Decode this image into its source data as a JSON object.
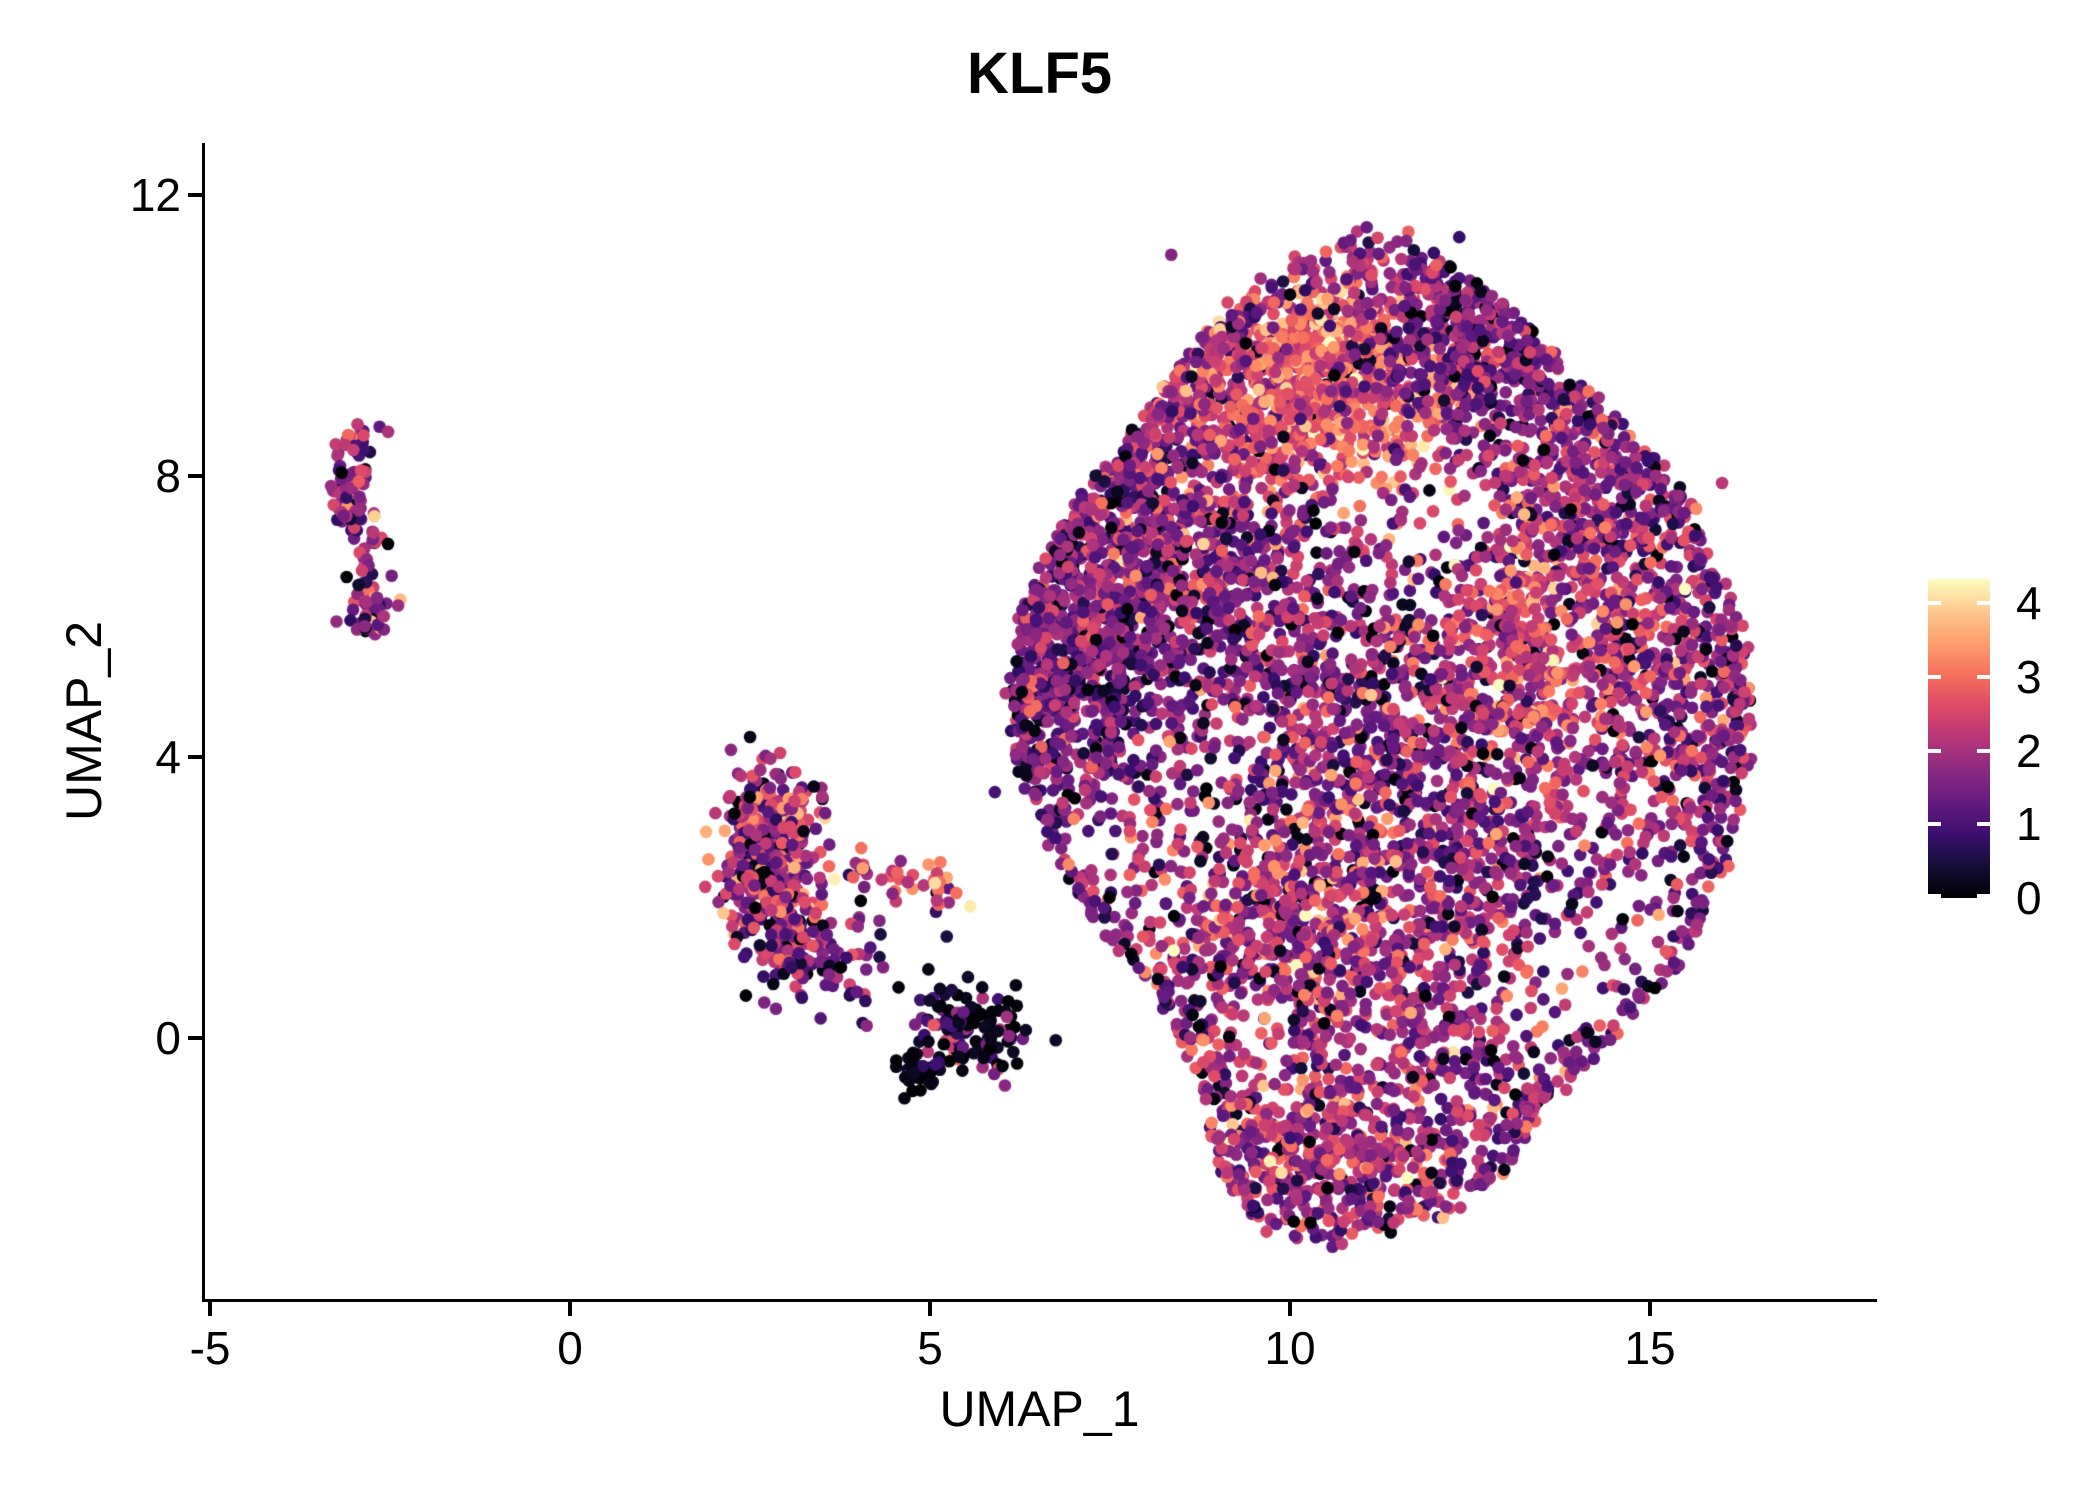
{
  "chart_data": {
    "type": "scatter",
    "title": "KLF5",
    "xlabel": "UMAP_1",
    "ylabel": "UMAP_2",
    "xlim": [
      -5.07,
      18.11
    ],
    "ylim": [
      -3.73,
      12.74
    ],
    "xticks": [
      -5,
      0,
      5,
      10,
      15
    ],
    "yticks": [
      0,
      4,
      8,
      12
    ],
    "grid": false,
    "legend_position": "right",
    "point_radius_px": 6.3,
    "seed": 1337,
    "colorbar": {
      "min": 0,
      "max": 4.33,
      "ticks": [
        0,
        1,
        2,
        3,
        4
      ],
      "stops": [
        "#000004",
        "#140e36",
        "#3b0f70",
        "#641a80",
        "#8c2981",
        "#b73779",
        "#de4968",
        "#f7705c",
        "#fe9f6d",
        "#fec98d",
        "#fcfdbf"
      ]
    },
    "polygons": {
      "big": [
        [
          6.0,
          5.0
        ],
        [
          6.3,
          3.4
        ],
        [
          7.05,
          1.7
        ],
        [
          8.15,
          0.5
        ],
        [
          8.7,
          -0.55
        ],
        [
          8.95,
          -1.9
        ],
        [
          9.55,
          -2.75
        ],
        [
          10.55,
          -3.0
        ],
        [
          11.9,
          -2.7
        ],
        [
          13.1,
          -2.0
        ],
        [
          13.5,
          -1.0
        ],
        [
          14.4,
          -0.3
        ],
        [
          15.45,
          0.9
        ],
        [
          16.1,
          2.3
        ],
        [
          16.45,
          3.8
        ],
        [
          16.4,
          5.6
        ],
        [
          15.6,
          7.7
        ],
        [
          14.25,
          9.2
        ],
        [
          13.0,
          10.45
        ],
        [
          11.4,
          11.7
        ],
        [
          10.3,
          11.35
        ],
        [
          9.15,
          10.5
        ],
        [
          8.0,
          9.0
        ],
        [
          7.0,
          7.6
        ],
        [
          6.3,
          6.3
        ]
      ]
    },
    "clusters": [
      {
        "name": "left-strip",
        "type": "path",
        "pts": [
          [
            -2.88,
            8.62
          ],
          [
            -3.0,
            8.25
          ],
          [
            -3.07,
            7.9
          ],
          [
            -3.0,
            7.55
          ],
          [
            -2.93,
            7.25
          ],
          [
            -2.82,
            6.98
          ]
        ],
        "jitter": 0.13,
        "n": 95,
        "vm": 1.75,
        "vs": 0.8,
        "black": 0.03
      },
      {
        "name": "left-gap-dots",
        "type": "gauss",
        "cx": -2.82,
        "cy": 6.7,
        "sx": 0.07,
        "sy": 0.12,
        "n": 7,
        "vm": 1.8,
        "vs": 0.6
      },
      {
        "name": "left-lower-blob",
        "type": "gauss",
        "cx": -2.77,
        "cy": 6.08,
        "sx": 0.17,
        "sy": 0.22,
        "n": 55,
        "vm": 1.95,
        "vs": 0.85,
        "black": 0.04
      },
      {
        "name": "mid-crescent-top",
        "type": "gauss",
        "cx": 2.78,
        "cy": 2.95,
        "sx": 0.3,
        "sy": 0.42,
        "n": 230,
        "vm": 1.85,
        "vs": 0.85,
        "black": 0.03
      },
      {
        "name": "mid-crescent-mid",
        "type": "gauss",
        "cx": 2.62,
        "cy": 2.15,
        "sx": 0.25,
        "sy": 0.33,
        "n": 150,
        "vm": 1.7,
        "vs": 0.85,
        "black": 0.03
      },
      {
        "name": "mid-crescent-low",
        "type": "gauss",
        "cx": 3.05,
        "cy": 1.3,
        "sx": 0.3,
        "sy": 0.33,
        "n": 130,
        "vm": 1.6,
        "vs": 0.85,
        "black": 0.04
      },
      {
        "name": "mid-sparse",
        "type": "gauss",
        "cx": 3.9,
        "cy": 1.15,
        "sx": 0.55,
        "sy": 0.45,
        "n": 50,
        "vm": 1.4,
        "vs": 0.8,
        "black": 0.04
      },
      {
        "name": "mid-chain",
        "type": "path",
        "pts": [
          [
            3.6,
            2.4
          ],
          [
            4.1,
            2.3
          ],
          [
            4.6,
            2.25
          ],
          [
            5.0,
            2.2
          ],
          [
            5.35,
            2.1
          ]
        ],
        "jitter": 0.16,
        "n": 40,
        "vm": 2.3,
        "vs": 0.9,
        "black": 0.02
      },
      {
        "name": "dark-subcluster",
        "type": "gauss",
        "cx": 5.55,
        "cy": 0.12,
        "sx": 0.4,
        "sy": 0.27,
        "n": 130,
        "vm": 0.9,
        "vs": 0.9,
        "black": 0.38
      },
      {
        "name": "black-clump",
        "type": "gauss",
        "cx": 4.85,
        "cy": -0.5,
        "sx": 0.15,
        "sy": 0.13,
        "n": 40,
        "vm": 0.3,
        "vs": 0.45,
        "black": 0.45
      },
      {
        "name": "big-left-lobe",
        "type": "gauss",
        "clip": "big",
        "cx": 7.0,
        "cy": 5.2,
        "sx": 0.75,
        "sy": 1.2,
        "n": 620,
        "vm": 1.45,
        "vs": 0.65,
        "black": 0.045
      },
      {
        "name": "big-upper-left",
        "type": "gauss",
        "clip": "big",
        "cx": 7.9,
        "cy": 7.6,
        "sx": 0.8,
        "sy": 0.95,
        "n": 430,
        "vm": 1.85,
        "vs": 0.8,
        "black": 0.045
      },
      {
        "name": "big-top-left",
        "type": "gauss",
        "clip": "big",
        "cx": 9.3,
        "cy": 9.3,
        "sx": 0.95,
        "sy": 0.85,
        "n": 480,
        "vm": 2.35,
        "vs": 0.8,
        "black": 0.03
      },
      {
        "name": "big-top-hotspot",
        "type": "gauss",
        "clip": "big",
        "cx": 10.9,
        "cy": 9.4,
        "sx": 0.85,
        "sy": 0.8,
        "n": 560,
        "vm": 2.9,
        "vs": 0.62,
        "black": 0.02
      },
      {
        "name": "big-top-right",
        "type": "gauss",
        "clip": "big",
        "cx": 12.6,
        "cy": 9.9,
        "sx": 1.0,
        "sy": 0.8,
        "n": 420,
        "vm": 1.45,
        "vs": 0.65,
        "black": 0.04
      },
      {
        "name": "big-right-upper",
        "type": "gauss",
        "clip": "big",
        "cx": 14.4,
        "cy": 7.5,
        "sx": 1.1,
        "sy": 1.1,
        "n": 540,
        "vm": 1.9,
        "vs": 0.75,
        "black": 0.04
      },
      {
        "name": "big-right-edge",
        "type": "gauss",
        "clip": "big",
        "cx": 15.4,
        "cy": 4.6,
        "sx": 0.85,
        "sy": 1.3,
        "n": 470,
        "vm": 1.9,
        "vs": 0.7,
        "black": 0.04
      },
      {
        "name": "big-mid-left",
        "type": "gauss",
        "clip": "big",
        "cx": 9.1,
        "cy": 6.4,
        "sx": 1.1,
        "sy": 1.0,
        "n": 440,
        "vm": 1.7,
        "vs": 0.75,
        "black": 0.05
      },
      {
        "name": "big-center",
        "type": "gauss",
        "clip": "big",
        "cx": 10.6,
        "cy": 4.6,
        "sx": 1.3,
        "sy": 1.4,
        "n": 700,
        "vm": 1.6,
        "vs": 0.8,
        "black": 0.07
      },
      {
        "name": "big-center-orange",
        "type": "gauss",
        "clip": "big",
        "cx": 13.2,
        "cy": 5.3,
        "sx": 0.85,
        "sy": 0.85,
        "n": 380,
        "vm": 2.5,
        "vs": 0.75,
        "black": 0.03
      },
      {
        "name": "big-center-low",
        "type": "gauss",
        "clip": "big",
        "cx": 12.4,
        "cy": 3.0,
        "sx": 1.2,
        "sy": 1.1,
        "n": 520,
        "vm": 1.7,
        "vs": 0.8,
        "black": 0.05
      },
      {
        "name": "big-low-left",
        "type": "gauss",
        "clip": "big",
        "cx": 9.7,
        "cy": 1.6,
        "sx": 1.2,
        "sy": 1.1,
        "n": 600,
        "vm": 2.15,
        "vs": 0.8,
        "black": 0.045
      },
      {
        "name": "big-low-mid",
        "type": "gauss",
        "clip": "big",
        "cx": 11.6,
        "cy": 0.4,
        "sx": 1.4,
        "sy": 0.9,
        "n": 420,
        "vm": 1.9,
        "vs": 0.8,
        "black": 0.045
      },
      {
        "name": "big-bottom-lobe",
        "type": "gauss",
        "clip": "big",
        "cx": 10.5,
        "cy": -1.7,
        "sx": 1.3,
        "sy": 0.7,
        "n": 470,
        "vm": 2.1,
        "vs": 0.8,
        "black": 0.045
      },
      {
        "name": "big-edge-ring",
        "type": "edge",
        "poly": "big",
        "n": 700,
        "vm": 1.7,
        "vs": 0.7,
        "black": 0.05
      }
    ],
    "extras": [
      [
        5.9,
        3.5,
        1.0
      ],
      [
        8.35,
        11.15,
        1.6
      ],
      [
        12.35,
        11.4,
        0.8
      ],
      [
        16.0,
        7.9,
        2.2
      ]
    ]
  }
}
